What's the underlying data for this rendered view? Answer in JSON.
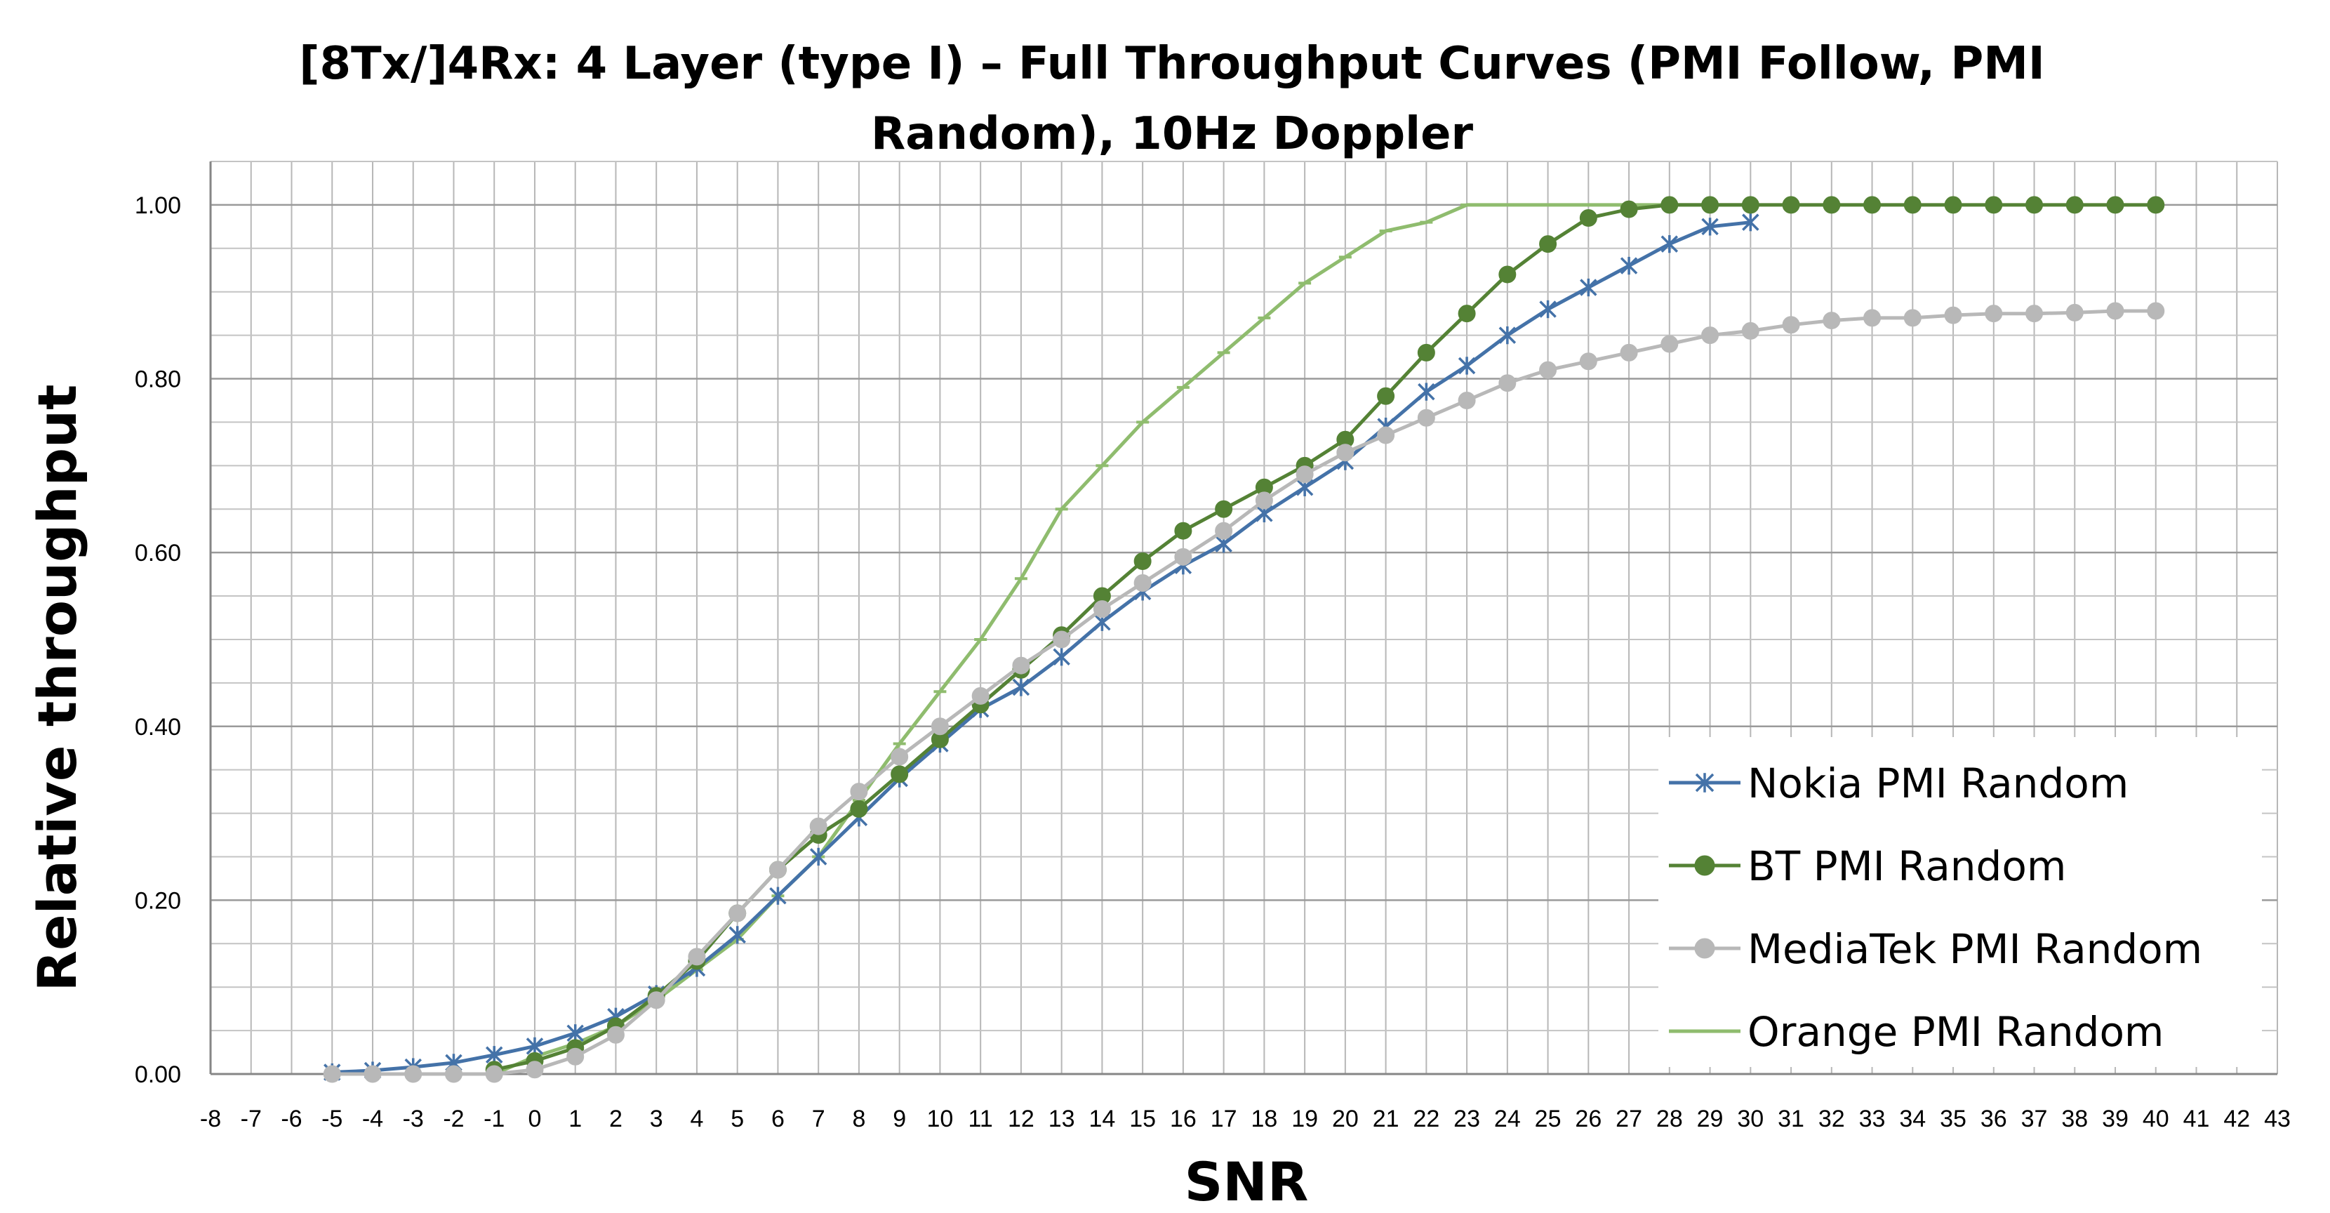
{
  "chart_data": {
    "type": "line",
    "title_line1": "[8Tx/]4Rx: 4 Layer (type I) – Full Throughput Curves (PMI Follow, PMI",
    "title_line2": "Random), 10Hz Doppler",
    "xlabel": "SNR",
    "ylabel": "Relative throughput",
    "xlim": [
      -8,
      43
    ],
    "ylim": [
      0,
      1.05
    ],
    "x_ticks": [
      -8,
      -7,
      -6,
      -5,
      -4,
      -3,
      -2,
      -1,
      0,
      1,
      2,
      3,
      4,
      5,
      6,
      7,
      8,
      9,
      10,
      11,
      12,
      13,
      14,
      15,
      16,
      17,
      18,
      19,
      20,
      21,
      22,
      23,
      24,
      25,
      26,
      27,
      28,
      29,
      30,
      31,
      32,
      33,
      34,
      35,
      36,
      37,
      38,
      39,
      40,
      41,
      42,
      43
    ],
    "y_ticks": [
      0,
      0.2,
      0.4,
      0.6,
      0.8,
      1.0
    ],
    "y_tick_labels": [
      "0.00",
      "0.20",
      "0.40",
      "0.60",
      "0.80",
      "1.00"
    ],
    "grid": true,
    "legend_position": "bottom-right",
    "series": [
      {
        "name": "Nokia PMI Random",
        "color": "#4472a8",
        "marker": "star",
        "x": [
          -5,
          -4,
          -3,
          -2,
          -1,
          0,
          1,
          2,
          3,
          4,
          5,
          6,
          7,
          8,
          9,
          10,
          11,
          12,
          13,
          14,
          15,
          16,
          17,
          18,
          19,
          20,
          21,
          22,
          23,
          24,
          25,
          26,
          27,
          28,
          29,
          30
        ],
        "y": [
          0.002,
          0.004,
          0.008,
          0.013,
          0.022,
          0.032,
          0.047,
          0.066,
          0.092,
          0.122,
          0.16,
          0.205,
          0.25,
          0.295,
          0.34,
          0.38,
          0.42,
          0.445,
          0.48,
          0.52,
          0.555,
          0.585,
          0.61,
          0.645,
          0.675,
          0.705,
          0.745,
          0.785,
          0.815,
          0.85,
          0.88,
          0.905,
          0.93,
          0.955,
          0.975,
          0.98
        ]
      },
      {
        "name": "BT PMI Random",
        "color": "#548235",
        "marker": "circle",
        "x": [
          -1,
          0,
          1,
          2,
          3,
          4,
          5,
          6,
          7,
          8,
          9,
          10,
          11,
          12,
          13,
          14,
          15,
          16,
          17,
          18,
          19,
          20,
          21,
          22,
          23,
          24,
          25,
          26,
          27,
          28,
          29,
          30,
          31,
          32,
          33,
          34,
          35,
          36,
          37,
          38,
          39,
          40
        ],
        "y": [
          0.005,
          0.015,
          0.03,
          0.055,
          0.09,
          0.13,
          0.185,
          0.235,
          0.275,
          0.305,
          0.345,
          0.385,
          0.425,
          0.465,
          0.505,
          0.55,
          0.59,
          0.625,
          0.65,
          0.675,
          0.7,
          0.73,
          0.78,
          0.83,
          0.875,
          0.92,
          0.955,
          0.985,
          0.995,
          1.0,
          1.0,
          1.0,
          1.0,
          1.0,
          1.0,
          1.0,
          1.0,
          1.0,
          1.0,
          1.0,
          1.0,
          1.0
        ]
      },
      {
        "name": "MediaTek PMI Random",
        "color": "#b8b8b8",
        "marker": "circle",
        "x": [
          -5,
          -4,
          -3,
          -2,
          -1,
          0,
          1,
          2,
          3,
          4,
          5,
          6,
          7,
          8,
          9,
          10,
          11,
          12,
          13,
          14,
          15,
          16,
          17,
          18,
          19,
          20,
          21,
          22,
          23,
          24,
          25,
          26,
          27,
          28,
          29,
          30,
          31,
          32,
          33,
          34,
          35,
          36,
          37,
          38,
          39,
          40
        ],
        "y": [
          0.0,
          0.0,
          0.0,
          0.0,
          0.0,
          0.005,
          0.02,
          0.045,
          0.085,
          0.135,
          0.185,
          0.235,
          0.285,
          0.325,
          0.365,
          0.4,
          0.435,
          0.47,
          0.5,
          0.535,
          0.565,
          0.595,
          0.625,
          0.66,
          0.69,
          0.715,
          0.735,
          0.755,
          0.775,
          0.795,
          0.81,
          0.82,
          0.83,
          0.84,
          0.85,
          0.855,
          0.862,
          0.867,
          0.87,
          0.87,
          0.873,
          0.875,
          0.875,
          0.876,
          0.878,
          0.878
        ]
      },
      {
        "name": "Orange PMI Random",
        "color": "#8fbc6e",
        "marker": "dash",
        "x": [
          -5,
          -4,
          -3,
          -2,
          -1,
          0,
          1,
          2,
          3,
          4,
          5,
          6,
          7,
          8,
          9,
          10,
          11,
          12,
          13,
          14,
          15,
          16,
          17,
          18,
          19,
          20,
          21,
          22,
          23,
          24,
          25,
          26,
          27,
          28,
          29,
          30
        ],
        "y": [
          0.0,
          0.0,
          0.0,
          0.0,
          0.0,
          0.02,
          0.035,
          0.055,
          0.085,
          0.12,
          0.155,
          0.205,
          0.25,
          0.315,
          0.38,
          0.44,
          0.5,
          0.57,
          0.65,
          0.7,
          0.75,
          0.79,
          0.83,
          0.87,
          0.91,
          0.94,
          0.97,
          0.98,
          1.0,
          1.0,
          1.0,
          1.0,
          1.0,
          1.0,
          1.0,
          1.0
        ]
      }
    ]
  }
}
